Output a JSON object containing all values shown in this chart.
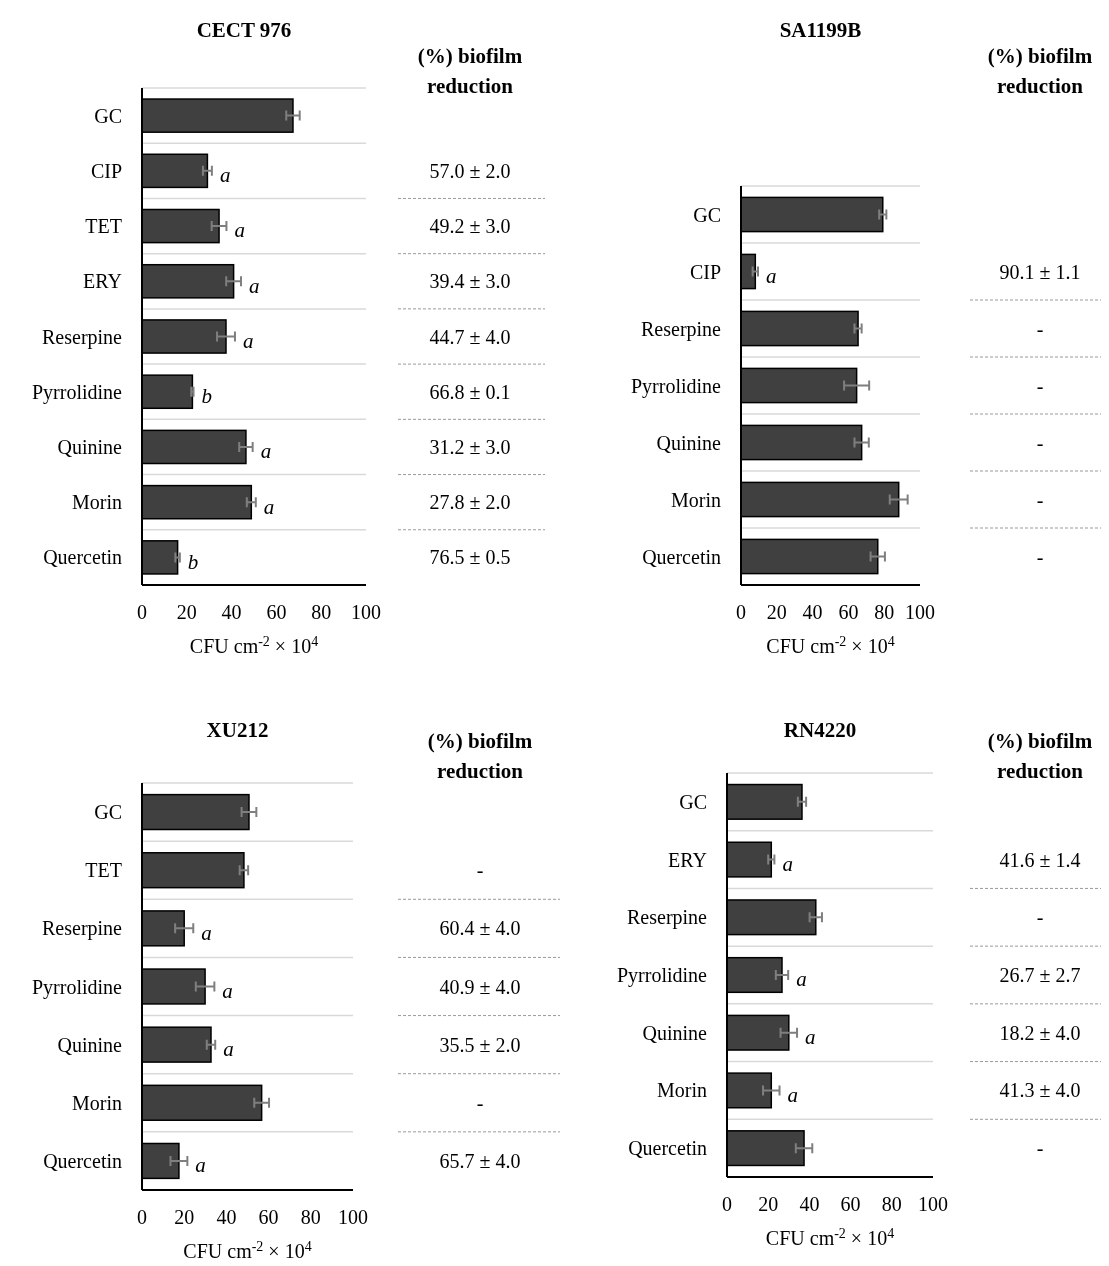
{
  "chart_data": [
    {
      "type": "bar",
      "orientation": "horizontal",
      "title": "CECT 976",
      "xlabel": "CFU cm$^{-2}$ × 10$^{4}$",
      "categories": [
        "GC",
        "CIP",
        "TET",
        "ERY",
        "Reserpine",
        "Pyrrolidine",
        "Quinine",
        "Morin",
        "Quercetin"
      ],
      "values": [
        67.4,
        29.2,
        34.4,
        40.9,
        37.5,
        22.5,
        46.4,
        48.8,
        15.9
      ],
      "errors": [
        3,
        2,
        3.3,
        3.3,
        4,
        0.5,
        3,
        2,
        1
      ],
      "color": "#404040",
      "xlim": [
        0,
        100
      ],
      "xticks": [
        0,
        20,
        40,
        60,
        80,
        100
      ],
      "grid": "y",
      "value_labels": [
        null,
        "a",
        "a",
        "a",
        "a",
        "b",
        "a",
        "a",
        "b"
      ],
      "annotations": [
        "(%) biofilm\nreduction",
        "57.0 ± 2.0",
        "49.2 ± 3.0",
        "39.4 ± 3.0",
        "44.7 ± 4.0",
        "66.8 ± 0.1",
        "31.2 ± 3.0",
        "27.8 ± 2.0",
        "76.5 ± 0.5"
      ]
    },
    {
      "type": "bar",
      "orientation": "horizontal",
      "title": "SA1199B",
      "xlabel": "CFU cm$^{-2}$ × 10$^{4}$",
      "categories": [
        "GC",
        "CIP",
        "Reserpine",
        "Pyrrolidine",
        "Quinine",
        "Morin",
        "Quercetin"
      ],
      "values": [
        79.2,
        8,
        65.4,
        64.6,
        67.4,
        88.1,
        76.4
      ],
      "errors": [
        2,
        1.5,
        2,
        7,
        4,
        5,
        4
      ],
      "color": "#404040",
      "xlim": [
        0,
        100
      ],
      "xticks": [
        0,
        20,
        40,
        60,
        80,
        100
      ],
      "grid": "y",
      "value_labels": [
        null,
        "a",
        null,
        null,
        null,
        null,
        null
      ],
      "annotations": [
        "(%) biofilm\nreduction",
        "90.1 ± 1.1",
        "-",
        "-",
        "-",
        "-",
        "-"
      ]
    },
    {
      "type": "bar",
      "orientation": "horizontal",
      "title": "XU212",
      "xlabel": "CFU cm$^{-2}$ × 10$^{4}$",
      "categories": [
        "GC",
        "TET",
        "Reserpine",
        "Pyrrolidine",
        "Quinine",
        "Morin",
        "Quercetin"
      ],
      "values": [
        50.7,
        48.3,
        20,
        29.9,
        32.7,
        56.7,
        17.5
      ],
      "errors": [
        3.5,
        2,
        4.3,
        4.4,
        2,
        3.5,
        4
      ],
      "color": "#404040",
      "xlim": [
        0,
        100
      ],
      "xticks": [
        0,
        20,
        40,
        60,
        80,
        100
      ],
      "grid": "y",
      "value_labels": [
        null,
        null,
        "a",
        "a",
        "a",
        null,
        "a"
      ],
      "annotations": [
        "(%) biofilm\nreduction",
        "-",
        "60.4 ± 4.0",
        "40.9 ± 4.0",
        "35.5 ± 2.0",
        "-",
        "65.7 ± 4.0"
      ]
    },
    {
      "type": "bar",
      "orientation": "horizontal",
      "title": "RN4220",
      "xlabel": "CFU cm$^{-2}$ × 10$^{4}$",
      "categories": [
        "GC",
        "ERY",
        "Reserpine",
        "Pyrrolidine",
        "Quinine",
        "Morin",
        "Quercetin"
      ],
      "values": [
        36.4,
        21.5,
        43.1,
        26.7,
        30,
        21.5,
        37.4
      ],
      "errors": [
        2,
        1.5,
        3,
        3,
        4,
        4,
        4
      ],
      "color": "#404040",
      "xlim": [
        0,
        100
      ],
      "xticks": [
        0,
        20,
        40,
        60,
        80,
        100
      ],
      "grid": "y",
      "value_labels": [
        null,
        "a",
        null,
        "a",
        "a",
        "a",
        null
      ],
      "annotations": [
        "(%) biofilm\nreduction",
        "41.6 ± 1.4",
        "-",
        "26.7 ± 2.7",
        "18.2 ± 4.0",
        "41.3 ± 4.0",
        "-"
      ]
    }
  ]
}
